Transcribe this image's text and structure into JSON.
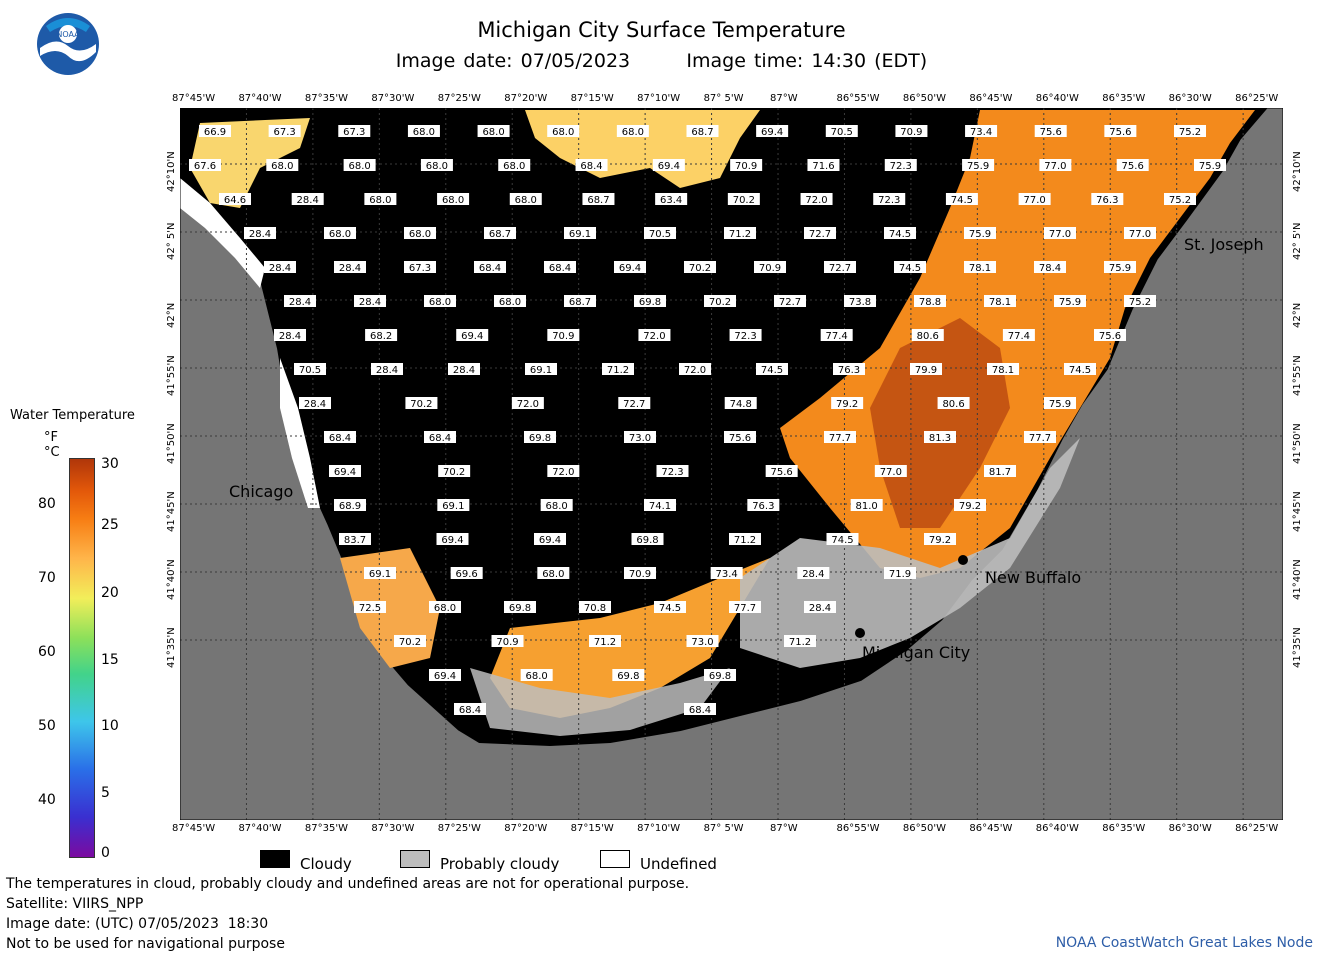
{
  "title": "Michigan City Surface Temperature",
  "image_date": "Image date: 07/05/2023",
  "image_time": "Image time: 14:30 (EDT)",
  "logo_text": "NOAA",
  "lon_labels": [
    "87°45'W",
    "87°40'W",
    "87°35'W",
    "87°30'W",
    "87°25'W",
    "87°20'W",
    "87°15'W",
    "87°10'W",
    "87° 5'W",
    "87°W",
    "86°55'W",
    "86°50'W",
    "86°45'W",
    "86°40'W",
    "86°35'W",
    "86°30'W",
    "86°25'W"
  ],
  "lat_labels": [
    "42°10'N",
    "42° 5'N",
    "42°N",
    "41°55'N",
    "41°50'N",
    "41°45'N",
    "41°40'N",
    "41°35'N"
  ],
  "places": {
    "chicago": "Chicago",
    "st_joseph": "St. Joseph",
    "new_buffalo": "New Buffalo",
    "michigan_city": "Michigan City"
  },
  "legend": {
    "title": "Water Temperature",
    "unit_f": "°F",
    "unit_c": "°C",
    "f_ticks": [
      "80",
      "70",
      "60",
      "50",
      "40"
    ],
    "c_ticks": [
      "30",
      "25",
      "20",
      "15",
      "10",
      "5",
      "0"
    ]
  },
  "keys": {
    "cloudy": "Cloudy",
    "probably_cloudy": "Probably cloudy",
    "undefined": "Undefined"
  },
  "footer": {
    "line1": "The temperatures in cloud, probably cloudy and undefined areas are not for operational purpose.",
    "line2": "Satellite: VIIRS_NPP",
    "line3": "Image date: (UTC) 07/05/2023  18:30",
    "line4": "Not to be used for navigational purpose",
    "credit": "NOAA CoastWatch Great Lakes Node"
  },
  "temperature_rows": [
    [
      "66.9",
      "67.3",
      "67.3",
      "68.0",
      "68.0",
      "68.0",
      "68.0",
      "68.7",
      "69.4",
      "70.5",
      "70.9",
      "73.4",
      "75.6",
      "75.6",
      "75.2"
    ],
    [
      "67.6",
      "68.0",
      "68.0",
      "68.0",
      "68.0",
      "68.4",
      "69.4",
      "70.9",
      "71.6",
      "72.3",
      "75.9",
      "77.0",
      "75.6",
      "75.9"
    ],
    [
      "64.6",
      "28.4",
      "68.0",
      "68.0",
      "68.0",
      "68.7",
      "63.4",
      "70.2",
      "72.0",
      "72.3",
      "74.5",
      "77.0",
      "76.3",
      "75.2"
    ],
    [
      "28.4",
      "68.0",
      "68.0",
      "68.7",
      "69.1",
      "70.5",
      "71.2",
      "72.7",
      "74.5",
      "75.9",
      "77.0",
      "77.0"
    ],
    [
      "28.4",
      "28.4",
      "67.3",
      "68.4",
      "68.4",
      "69.4",
      "70.2",
      "70.9",
      "72.7",
      "74.5",
      "78.1",
      "78.4",
      "75.9"
    ],
    [
      "28.4",
      "28.4",
      "68.0",
      "68.0",
      "68.7",
      "69.8",
      "70.2",
      "72.7",
      "73.8",
      "78.8",
      "78.1",
      "75.9",
      "75.2"
    ],
    [
      "28.4",
      "68.2",
      "69.4",
      "70.9",
      "72.0",
      "72.3",
      "77.4",
      "80.6",
      "77.4",
      "75.6"
    ],
    [
      "70.5",
      "28.4",
      "28.4",
      "69.1",
      "71.2",
      "72.0",
      "74.5",
      "76.3",
      "79.9",
      "78.1",
      "74.5"
    ],
    [
      "28.4",
      "70.2",
      "72.0",
      "72.7",
      "74.8",
      "79.2",
      "80.6",
      "75.9"
    ],
    [
      "68.4",
      "68.4",
      "69.8",
      "73.0",
      "75.6",
      "77.7",
      "81.3",
      "77.7"
    ],
    [
      "69.4",
      "70.2",
      "72.0",
      "72.3",
      "75.6",
      "77.0",
      "81.7"
    ],
    [
      "68.9",
      "69.1",
      "68.0",
      "74.1",
      "76.3",
      "81.0",
      "79.2"
    ],
    [
      "83.7",
      "69.4",
      "69.4",
      "69.8",
      "71.2",
      "74.5",
      "79.2"
    ],
    [
      "69.1",
      "69.6",
      "68.0",
      "70.9",
      "73.4",
      "28.4",
      "71.9"
    ],
    [
      "72.5",
      "68.0",
      "69.8",
      "70.8",
      "74.5",
      "77.7",
      "28.4"
    ],
    [
      "70.2",
      "70.9",
      "71.2",
      "73.0",
      "71.2"
    ],
    [
      "69.4",
      "68.0",
      "69.8",
      "69.8"
    ],
    [
      "68.4",
      "68.4"
    ]
  ]
}
